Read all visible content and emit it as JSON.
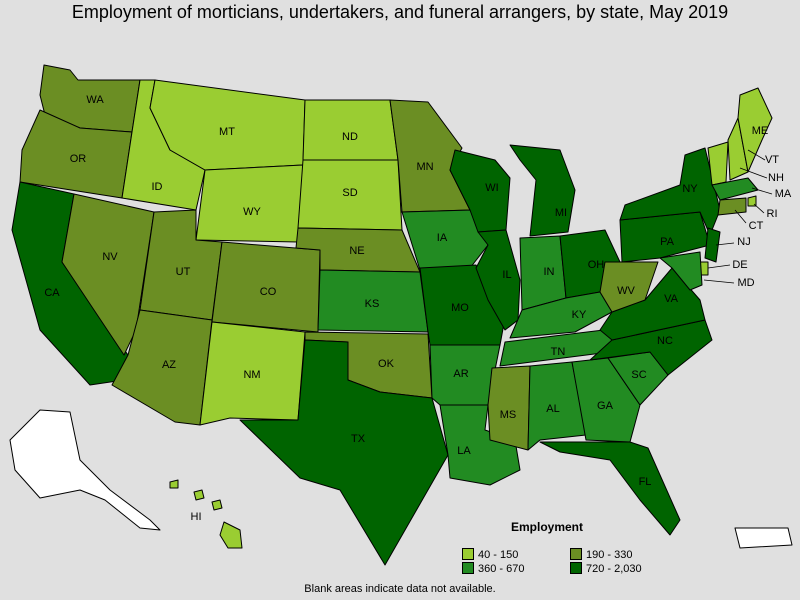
{
  "title": "Employment of morticians, undertakers, and funeral arrangers, by state, May 2019",
  "note": "Blank areas indicate data not available.",
  "legend": {
    "title": "Employment",
    "items": [
      {
        "label": "40 - 150",
        "color": "#9acd32"
      },
      {
        "label": "190 - 330",
        "color": "#6b8e23"
      },
      {
        "label": "360 - 670",
        "color": "#228b22"
      },
      {
        "label": "720 - 2,030",
        "color": "#006400"
      }
    ]
  },
  "colors": {
    "c1": "#9acd32",
    "c2": "#6b8e23",
    "c3": "#228b22",
    "c4": "#006400",
    "none": "#ffffff"
  },
  "states": {
    "WA": "WA",
    "OR": "OR",
    "CA": "CA",
    "NV": "NV",
    "ID": "ID",
    "MT": "MT",
    "WY": "WY",
    "UT": "UT",
    "AZ": "AZ",
    "CO": "CO",
    "NM": "NM",
    "ND": "ND",
    "SD": "SD",
    "NE": "NE",
    "KS": "KS",
    "OK": "OK",
    "TX": "TX",
    "MN": "MN",
    "IA": "IA",
    "MO": "MO",
    "AR": "AR",
    "LA": "LA",
    "WI": "WI",
    "IL": "IL",
    "MI": "MI",
    "IN": "IN",
    "OH": "OH",
    "KY": "KY",
    "TN": "TN",
    "MS": "MS",
    "AL": "AL",
    "GA": "GA",
    "FL": "FL",
    "SC": "SC",
    "NC": "NC",
    "VA": "VA",
    "WV": "WV",
    "PA": "PA",
    "NY": "NY",
    "ME": "ME",
    "VT": "VT",
    "NH": "NH",
    "MA": "MA",
    "RI": "RI",
    "CT": "CT",
    "NJ": "NJ",
    "DE": "DE",
    "MD": "MD",
    "HI": "HI"
  }
}
